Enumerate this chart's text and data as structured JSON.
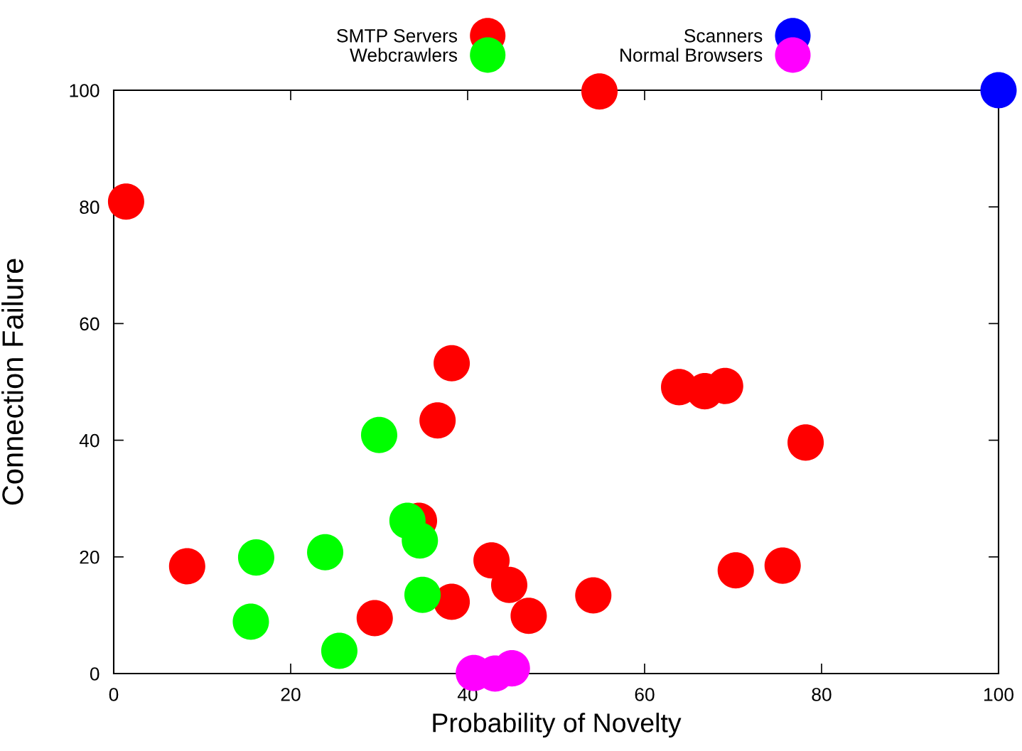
{
  "chart_data": {
    "type": "scatter",
    "xlabel": "Probability of Novelty",
    "ylabel": "Connection Failure",
    "xlim": [
      0,
      100
    ],
    "ylim": [
      0,
      100
    ],
    "xticks": [
      0,
      20,
      40,
      60,
      80,
      100
    ],
    "yticks": [
      0,
      20,
      40,
      60,
      80,
      100
    ],
    "grid": false,
    "legend": "top",
    "marker": "circle",
    "series": [
      {
        "name": "SMTP Servers",
        "color": "#ff0000",
        "x": [
          1.4,
          54.9,
          8.3,
          38.2,
          36.6,
          34.5,
          29.5,
          38.2,
          42.7,
          44.7,
          46.9,
          54.2,
          63.9,
          66.8,
          69.1,
          78.2,
          70.3,
          75.6
        ],
        "values": [
          80.9,
          99.8,
          18.4,
          53.2,
          43.4,
          26.2,
          9.5,
          12.3,
          19.4,
          15.2,
          9.9,
          13.4,
          49.1,
          48.4,
          49.3,
          39.6,
          17.7,
          18.5
        ]
      },
      {
        "name": "Webcrawlers",
        "color": "#00ff00",
        "x": [
          30.0,
          33.2,
          34.6,
          34.9,
          23.9,
          16.1,
          15.5,
          25.5
        ],
        "values": [
          40.9,
          26.2,
          22.8,
          13.5,
          20.8,
          19.9,
          8.9,
          3.9
        ]
      },
      {
        "name": "Scanners",
        "color": "#0000ff",
        "x": [
          100
        ],
        "values": [
          100
        ]
      },
      {
        "name": "Normal Browsers",
        "color": "#ff00ff",
        "x": [
          40.7,
          43.1,
          45.0
        ],
        "values": [
          0.1,
          0,
          0.9
        ]
      }
    ]
  }
}
